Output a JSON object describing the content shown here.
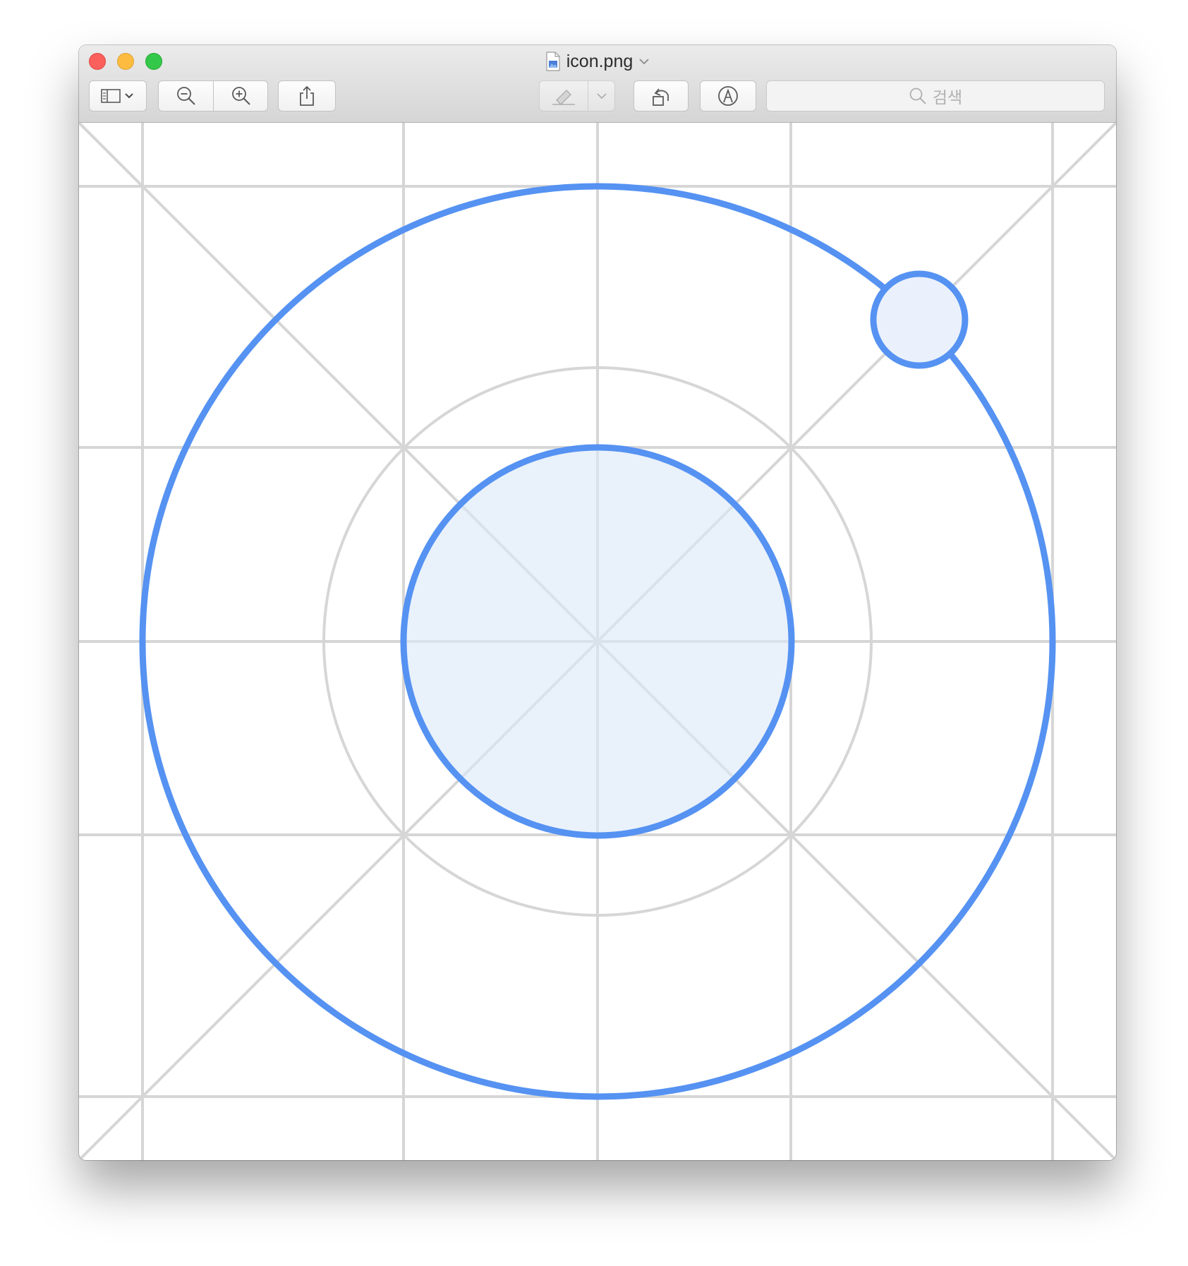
{
  "window": {
    "title": "icon.png"
  },
  "toolbar": {
    "buttons": [
      {
        "name": "sidebar-view-button",
        "icon": "sidebar-icon"
      },
      {
        "name": "zoom-out-button",
        "icon": "zoom-out-icon"
      },
      {
        "name": "zoom-in-button",
        "icon": "zoom-in-icon"
      },
      {
        "name": "share-button",
        "icon": "share-icon"
      },
      {
        "name": "highlight-button",
        "icon": "highlighter-icon"
      },
      {
        "name": "rotate-button",
        "icon": "rotate-left-icon"
      },
      {
        "name": "markup-button",
        "icon": "markup-pen-icon"
      }
    ]
  },
  "search": {
    "placeholder": "검색"
  },
  "image": {
    "description_colors": {
      "accent": "#5592f2",
      "fill": "#eaf1fc",
      "grid": "#d6d6d6"
    }
  }
}
